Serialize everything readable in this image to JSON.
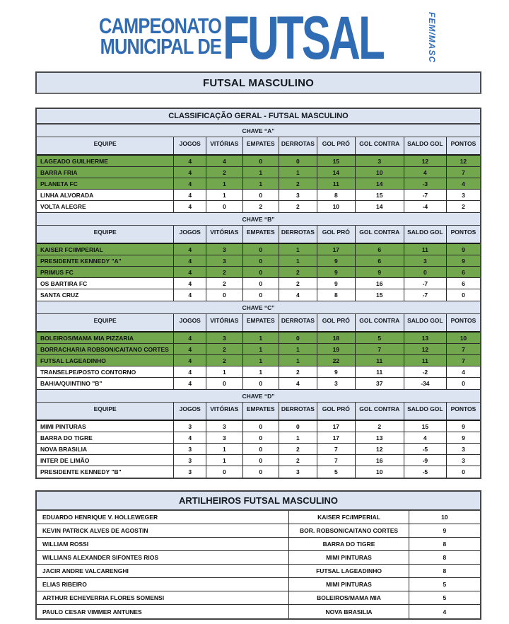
{
  "logo": {
    "line1": "CAMPEONATO",
    "line2": "MUNICIPAL DE",
    "word": "FUTSAL",
    "vertical": "FEM/MASC"
  },
  "section_title": "FUTSAL MASCULINO",
  "classification": {
    "title": "CLASSIFICAÇÃO GERAL - FUTSAL MASCULINO",
    "columns": [
      "EQUIPE",
      "JOGOS",
      "VITÓRIAS",
      "EMPATES",
      "DERROTAS",
      "GOL PRÓ",
      "GOL CONTRA",
      "SALDO GOL",
      "PONTOS"
    ],
    "groups": [
      {
        "label": "CHAVE “A”",
        "teams": [
          {
            "name": "LAGEADO GUILHERME",
            "stats": [
              "4",
              "4",
              "0",
              "0",
              "15",
              "3",
              "12",
              "12"
            ],
            "highlight": true
          },
          {
            "name": "BARRA FRIA",
            "stats": [
              "4",
              "2",
              "1",
              "1",
              "14",
              "10",
              "4",
              "7"
            ],
            "highlight": true
          },
          {
            "name": "PLANETA FC",
            "stats": [
              "4",
              "1",
              "1",
              "2",
              "11",
              "14",
              "-3",
              "4"
            ],
            "highlight": true
          },
          {
            "name": "LINHA ALVORADA",
            "stats": [
              "4",
              "1",
              "0",
              "3",
              "8",
              "15",
              "-7",
              "3"
            ],
            "highlight": false
          },
          {
            "name": "VOLTA ALEGRE",
            "stats": [
              "4",
              "0",
              "2",
              "2",
              "10",
              "14",
              "-4",
              "2"
            ],
            "highlight": false
          }
        ]
      },
      {
        "label": "CHAVE “B”",
        "teams": [
          {
            "name": "KAISER FC/IMPERIAL",
            "stats": [
              "4",
              "3",
              "0",
              "1",
              "17",
              "6",
              "11",
              "9"
            ],
            "highlight": true
          },
          {
            "name": "PRESIDENTE KENNEDY \"A\"",
            "stats": [
              "4",
              "3",
              "0",
              "1",
              "9",
              "6",
              "3",
              "9"
            ],
            "highlight": true
          },
          {
            "name": "PRIMUS FC",
            "stats": [
              "4",
              "2",
              "0",
              "2",
              "9",
              "9",
              "0",
              "6"
            ],
            "highlight": true
          },
          {
            "name": "OS BARTIRA FC",
            "stats": [
              "4",
              "2",
              "0",
              "2",
              "9",
              "16",
              "-7",
              "6"
            ],
            "highlight": false
          },
          {
            "name": "SANTA CRUZ",
            "stats": [
              "4",
              "0",
              "0",
              "4",
              "8",
              "15",
              "-7",
              "0"
            ],
            "highlight": false
          }
        ]
      },
      {
        "label": "CHAVE “C”",
        "teams": [
          {
            "name": "BOLEIROS/MAMA MIA PIZZARIA",
            "stats": [
              "4",
              "3",
              "1",
              "0",
              "18",
              "5",
              "13",
              "10"
            ],
            "highlight": true
          },
          {
            "name": "BORRACHARIA ROBSON/CAITANO CORTES",
            "stats": [
              "4",
              "2",
              "1",
              "1",
              "19",
              "7",
              "12",
              "7"
            ],
            "highlight": true
          },
          {
            "name": "FUTSAL LAGEADINHO",
            "stats": [
              "4",
              "2",
              "1",
              "1",
              "22",
              "11",
              "11",
              "7"
            ],
            "highlight": true
          },
          {
            "name": "TRANSELPE/POSTO CONTORNO",
            "stats": [
              "4",
              "1",
              "1",
              "2",
              "9",
              "11",
              "-2",
              "4"
            ],
            "highlight": false
          },
          {
            "name": "BAHIA/QUINTINO \"B\"",
            "stats": [
              "4",
              "0",
              "0",
              "4",
              "3",
              "37",
              "-34",
              "0"
            ],
            "highlight": false
          }
        ]
      },
      {
        "label": "CHAVE “D”",
        "teams": [
          {
            "name": "MIMI PINTURAS",
            "stats": [
              "3",
              "3",
              "0",
              "0",
              "17",
              "2",
              "15",
              "9"
            ],
            "highlight": false
          },
          {
            "name": "BARRA DO TIGRE",
            "stats": [
              "4",
              "3",
              "0",
              "1",
              "17",
              "13",
              "4",
              "9"
            ],
            "highlight": false
          },
          {
            "name": "NOVA BRASILIA",
            "stats": [
              "3",
              "1",
              "0",
              "2",
              "7",
              "12",
              "-5",
              "3"
            ],
            "highlight": false
          },
          {
            "name": "INTER DE LIMÃO",
            "stats": [
              "3",
              "1",
              "0",
              "2",
              "7",
              "16",
              "-9",
              "3"
            ],
            "highlight": false
          },
          {
            "name": "PRESIDENTE KENNEDY \"B\"",
            "stats": [
              "3",
              "0",
              "0",
              "3",
              "5",
              "10",
              "-5",
              "0"
            ],
            "highlight": false
          }
        ]
      }
    ]
  },
  "scorers": {
    "title": "ARTILHEIROS FUTSAL MASCULINO",
    "rows": [
      {
        "player": "EDUARDO HENRIQUE V. HOLLEWEGER",
        "team": "KAISER FC/IMPERIAL",
        "goals": "10"
      },
      {
        "player": "KEVIN PATRICK ALVES DE AGOSTIN",
        "team": "BOR. ROBSON/CAITANO CORTES",
        "goals": "9"
      },
      {
        "player": "WILLIAM ROSSI",
        "team": "BARRA DO TIGRE",
        "goals": "8"
      },
      {
        "player": "WILLIANS ALEXANDER SIFONTES RIOS",
        "team": "MIMI PINTURAS",
        "goals": "8"
      },
      {
        "player": "JACIR ANDRE VALCARENGHI",
        "team": "FUTSAL LAGEADINHO",
        "goals": "8"
      },
      {
        "player": "ELIAS RIBEIRO",
        "team": "MIMI PINTURAS",
        "goals": "5"
      },
      {
        "player": "ARTHUR ECHEVERRIA FLORES SOMENSI",
        "team": "BOLEIROS/MAMA MIA",
        "goals": "5"
      },
      {
        "player": "PAULO CESAR VIMMER ANTUNES",
        "team": "NOVA BRASILIA",
        "goals": "4"
      }
    ]
  },
  "colors": {
    "logo_blue": "#306cb4",
    "header_bg": "#dbe4f0",
    "highlight_green": "#72a74e"
  }
}
